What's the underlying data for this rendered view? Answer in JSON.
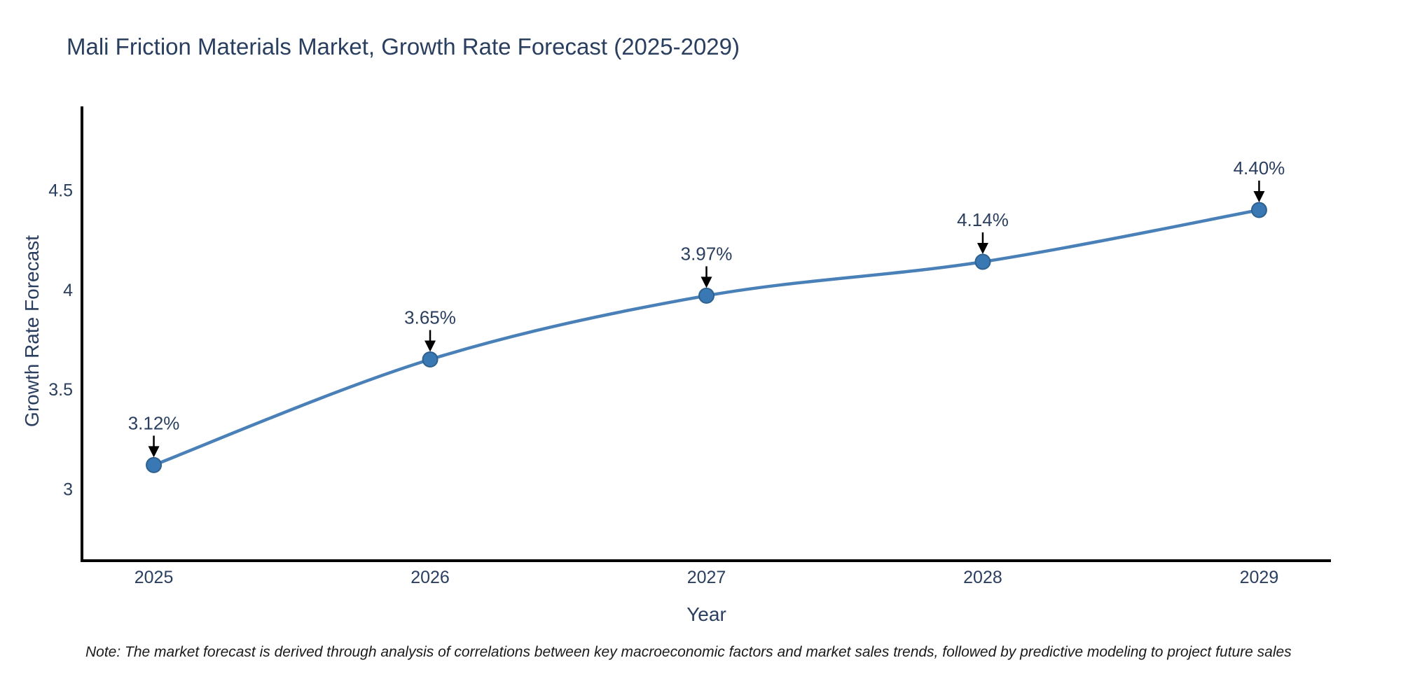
{
  "page": {
    "background": "#ffffff"
  },
  "chart_data": {
    "type": "line",
    "title": "Mali Friction Materials Market, Growth Rate Forecast (2025-2029)",
    "xlabel": "Year",
    "ylabel": "Growth Rate Forecast",
    "x": [
      2025,
      2026,
      2027,
      2028,
      2029
    ],
    "series": [
      {
        "name": "Growth Rate Forecast",
        "values": [
          3.12,
          3.65,
          3.97,
          4.14,
          4.4
        ]
      }
    ],
    "point_labels": [
      "3.12%",
      "3.65%",
      "3.97%",
      "4.14%",
      "4.40%"
    ],
    "x_tick_labels": [
      "2025",
      "2026",
      "2027",
      "2028",
      "2029"
    ],
    "y_ticks": [
      3,
      3.5,
      4,
      4.5
    ],
    "y_tick_labels": [
      "3",
      "3.5",
      "4",
      "4.5"
    ],
    "xlim": [
      2024.74,
      2029.26
    ],
    "ylim": [
      2.64,
      4.92
    ],
    "grid": false,
    "legend": "none",
    "line_shape": "spline",
    "annotation_arrows": true,
    "colors": {
      "line": "#4a80b8",
      "marker": "#3a78b3",
      "marker_edge": "#2e618f",
      "text": "#2a3f5f",
      "axis": "#000000",
      "arrow": "#000000",
      "note": "#1a1a1a"
    }
  },
  "note": "Note: The market forecast is derived through analysis of correlations between key macroeconomic factors and market sales trends, followed by predictive modeling to project future sales"
}
